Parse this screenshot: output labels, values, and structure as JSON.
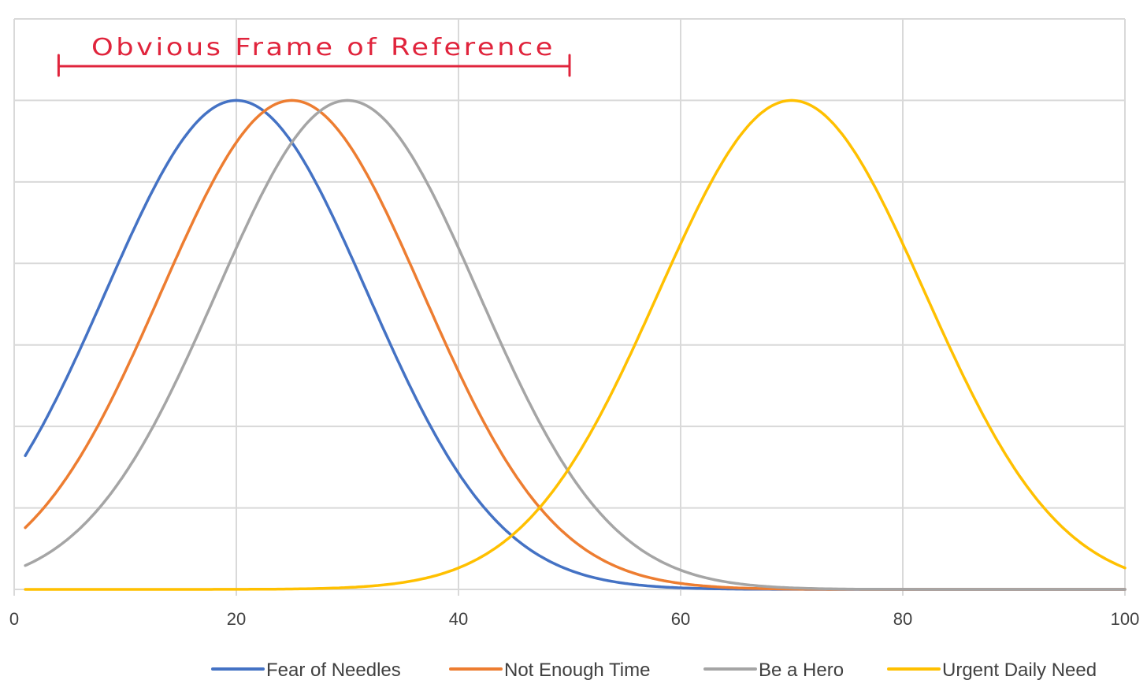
{
  "chart_data": {
    "type": "line",
    "title": "",
    "xlabel": "",
    "ylabel": "",
    "xlim": [
      0,
      100
    ],
    "ylim": [
      0,
      7
    ],
    "x_ticks": [
      "0",
      "20",
      "40",
      "60",
      "80",
      "100"
    ],
    "y_ticks_labeled": false,
    "grid": true,
    "legend_position": "bottom",
    "annotation": {
      "text": "Obvious Frame of Reference",
      "range": [
        4,
        50
      ],
      "color": "#e0243c"
    },
    "series": [
      {
        "name": "Fear of Needles",
        "color": "#4472c4",
        "shape": "bell",
        "peak_x": 20,
        "peak_y": 6.0,
        "sd": 11.8,
        "x_start": 1,
        "x_end": 100
      },
      {
        "name": "Not Enough Time",
        "color": "#ed7d31",
        "shape": "bell",
        "peak_x": 25,
        "peak_y": 6.0,
        "sd": 11.8,
        "x_start": 1,
        "x_end": 100
      },
      {
        "name": "Be a Hero",
        "color": "#a5a5a5",
        "shape": "bell",
        "peak_x": 30,
        "peak_y": 6.0,
        "sd": 11.8,
        "x_start": 1,
        "x_end": 100
      },
      {
        "name": "Urgent Daily Need",
        "color": "#ffc000",
        "shape": "bell",
        "peak_x": 70,
        "peak_y": 6.0,
        "sd": 12.0,
        "x_start": 1,
        "x_end": 100
      }
    ]
  }
}
